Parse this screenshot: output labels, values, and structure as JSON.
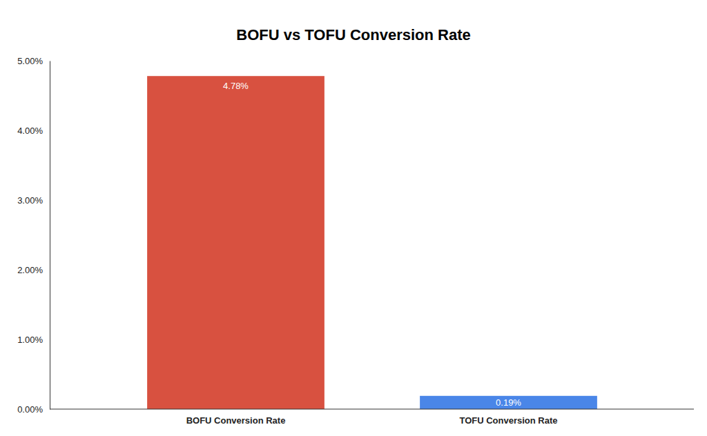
{
  "chart_data": {
    "type": "bar",
    "title": "BOFU vs TOFU Conversion Rate",
    "categories": [
      "BOFU Conversion Rate",
      "TOFU Conversion Rate"
    ],
    "values": [
      4.78,
      0.19
    ],
    "value_labels": [
      "4.78%",
      "0.19%"
    ],
    "colors": [
      "#d85140",
      "#4a86e8"
    ],
    "ylim": [
      0,
      5
    ],
    "yticks": [
      {
        "value": 0,
        "label": "0.00%"
      },
      {
        "value": 1,
        "label": "1.00%"
      },
      {
        "value": 2,
        "label": "2.00%"
      },
      {
        "value": 3,
        "label": "3.00%"
      },
      {
        "value": 4,
        "label": "4.00%"
      },
      {
        "value": 5,
        "label": "5.00%"
      }
    ],
    "grid": false,
    "data_labels": true
  }
}
